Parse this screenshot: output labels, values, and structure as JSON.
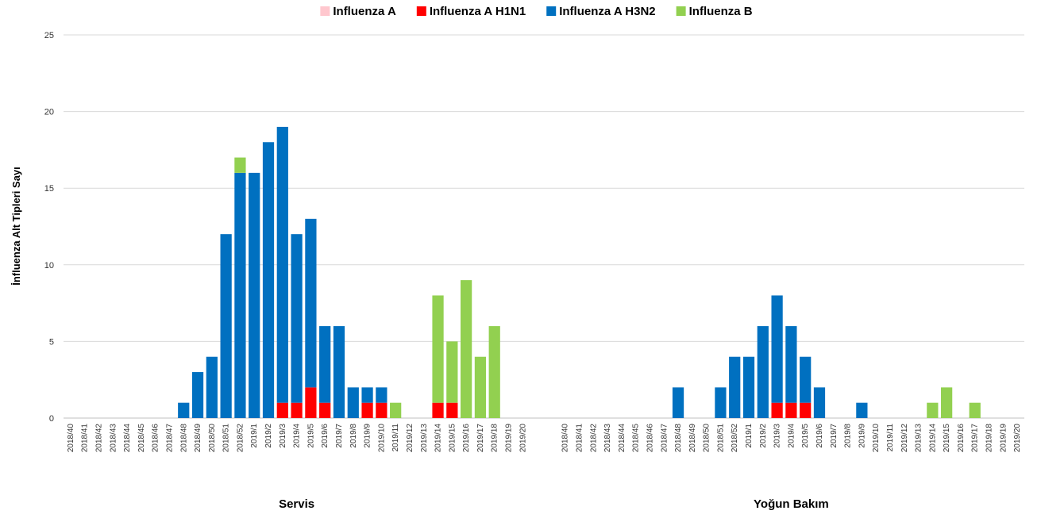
{
  "chart_data": {
    "type": "stacked_bar",
    "y_label": "İnfluenza Alt Tipleri Sayı",
    "ylim": [
      0,
      25
    ],
    "yticks": [
      0,
      5,
      10,
      15,
      20,
      25
    ],
    "grid": true,
    "legend": "top",
    "groups": [
      {
        "label": "Servis",
        "categories": [
          "2018/40",
          "2018/41",
          "2018/42",
          "2018/43",
          "2018/44",
          "2018/45",
          "2018/46",
          "2018/47",
          "2018/48",
          "2018/49",
          "2018/50",
          "2018/51",
          "2018/52",
          "2019/1",
          "2019/2",
          "2019/3",
          "2019/4",
          "2019/5",
          "2019/6",
          "2019/7",
          "2019/8",
          "2019/9",
          "2019/10",
          "2019/11",
          "2019/12",
          "2019/13",
          "2019/14",
          "2019/15",
          "2019/16",
          "2019/17",
          "2019/18",
          "2019/19",
          "2019/20"
        ]
      },
      {
        "label": "Yoğun Bakım",
        "categories": [
          "2018/40",
          "2018/41",
          "2018/42",
          "2018/43",
          "2018/44",
          "2018/45",
          "2018/46",
          "2018/47",
          "2018/48",
          "2018/49",
          "2018/50",
          "2018/51",
          "2018/52",
          "2019/1",
          "2019/2",
          "2019/3",
          "2019/4",
          "2019/5",
          "2019/6",
          "2019/7",
          "2019/8",
          "2019/9",
          "2019/10",
          "2019/11",
          "2019/12",
          "2019/13",
          "2019/14",
          "2019/15",
          "2019/16",
          "2019/17",
          "2019/18",
          "2019/19",
          "2019/20"
        ]
      }
    ],
    "series": [
      {
        "name": "Influenza A",
        "color": "#ffc7ce",
        "values": [
          [
            0,
            0,
            0,
            0,
            0,
            0,
            0,
            0,
            0,
            0,
            0,
            0,
            0,
            0,
            0,
            0,
            0,
            0,
            0,
            0,
            0,
            0,
            0,
            0,
            0,
            0,
            0,
            0,
            0,
            0,
            0,
            0,
            0
          ],
          [
            0,
            0,
            0,
            0,
            0,
            0,
            0,
            0,
            0,
            0,
            0,
            0,
            0,
            0,
            0,
            0,
            0,
            0,
            0,
            0,
            0,
            0,
            0,
            0,
            0,
            0,
            0,
            0,
            0,
            0,
            0,
            0,
            0
          ]
        ]
      },
      {
        "name": "Influenza A H1N1",
        "color": "#ff0000",
        "values": [
          [
            0,
            0,
            0,
            0,
            0,
            0,
            0,
            0,
            0,
            0,
            0,
            0,
            0,
            0,
            0,
            1,
            1,
            2,
            1,
            0,
            0,
            1,
            1,
            0,
            0,
            0,
            1,
            1,
            0,
            0,
            0,
            0,
            0
          ],
          [
            0,
            0,
            0,
            0,
            0,
            0,
            0,
            0,
            0,
            0,
            0,
            0,
            0,
            0,
            0,
            1,
            1,
            1,
            0,
            0,
            0,
            0,
            0,
            0,
            0,
            0,
            0,
            0,
            0,
            0,
            0,
            0,
            0
          ]
        ]
      },
      {
        "name": "Influenza A H3N2",
        "color": "#0070c0",
        "values": [
          [
            0,
            0,
            0,
            0,
            0,
            0,
            0,
            0,
            1,
            3,
            4,
            12,
            16,
            16,
            18,
            18,
            11,
            11,
            5,
            6,
            2,
            1,
            1,
            0,
            0,
            0,
            0,
            0,
            0,
            0,
            0,
            0,
            0
          ],
          [
            0,
            0,
            0,
            0,
            0,
            0,
            0,
            0,
            2,
            0,
            0,
            2,
            4,
            4,
            6,
            7,
            5,
            3,
            2,
            0,
            0,
            1,
            0,
            0,
            0,
            0,
            0,
            0,
            0,
            0,
            0,
            0,
            0
          ]
        ]
      },
      {
        "name": "Influenza B",
        "color": "#92d050",
        "values": [
          [
            0,
            0,
            0,
            0,
            0,
            0,
            0,
            0,
            0,
            0,
            0,
            0,
            1,
            0,
            0,
            0,
            0,
            0,
            0,
            0,
            0,
            0,
            0,
            1,
            0,
            0,
            7,
            4,
            9,
            4,
            6,
            0,
            0
          ],
          [
            0,
            0,
            0,
            0,
            0,
            0,
            0,
            0,
            0,
            0,
            0,
            0,
            0,
            0,
            0,
            0,
            0,
            0,
            0,
            0,
            0,
            0,
            0,
            0,
            0,
            0,
            1,
            2,
            0,
            1,
            0,
            0,
            0
          ]
        ]
      }
    ]
  }
}
